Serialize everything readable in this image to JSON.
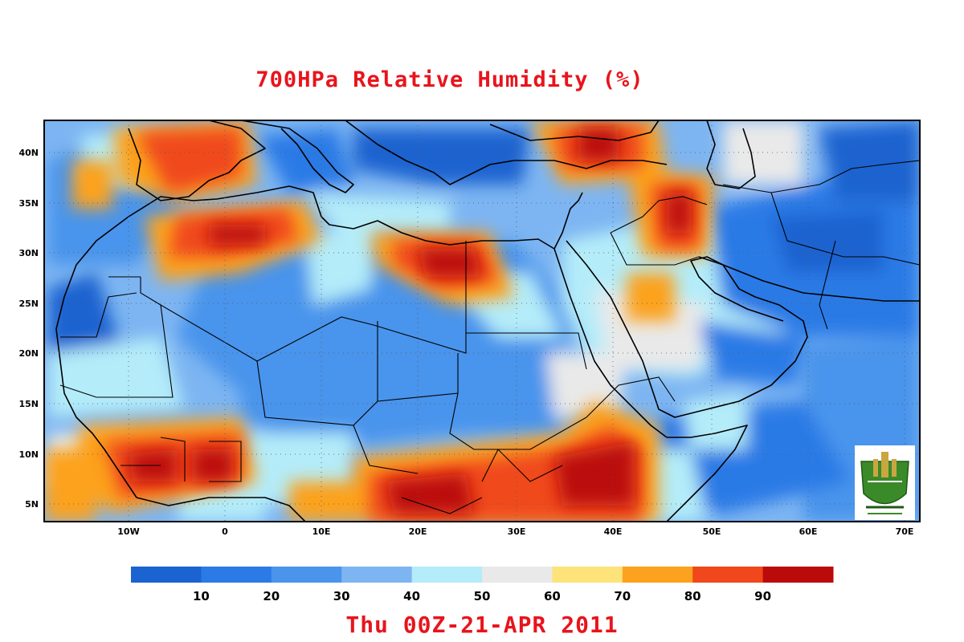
{
  "map": {
    "title": "700HPa Relative Humidity (%)",
    "valid_time": "Thu 00Z-21-APR 2011",
    "field": "relative humidity",
    "level": "700 hPa",
    "lon_range": [
      -18,
      72
    ],
    "lat_range": [
      3,
      43
    ],
    "lon_ticks": [
      "10W",
      "0",
      "10E",
      "20E",
      "30E",
      "40E",
      "50E",
      "60E",
      "70E"
    ],
    "lat_ticks": [
      "40N",
      "35N",
      "30N",
      "25N",
      "20N",
      "15N",
      "10N",
      "5N"
    ],
    "gridlines": "dotted",
    "logo_icon": "university-seal-icon"
  },
  "colorbar": {
    "labels": [
      "10",
      "20",
      "30",
      "40",
      "50",
      "60",
      "70",
      "80",
      "90"
    ],
    "colors": [
      "#1a63d0",
      "#2b7ae6",
      "#4a94ec",
      "#7db5f2",
      "#b4ecf9",
      "#e9e9e9",
      "#fde37a",
      "#fca21e",
      "#f0481a",
      "#bb0a0a"
    ]
  },
  "humidity_regions": [
    {
      "region": "Libya / Egypt coast",
      "level": "high"
    },
    {
      "region": "Morocco / Algeria",
      "level": "high"
    },
    {
      "region": "Turkey / Caucasus",
      "level": "high"
    },
    {
      "region": "Iraq / Zagros",
      "level": "very high"
    },
    {
      "region": "Gulf of Guinea coast",
      "level": "very high"
    },
    {
      "region": "Central Africa / Ethiopia",
      "level": "very high"
    },
    {
      "region": "Sahara",
      "level": "low"
    },
    {
      "region": "Arabian Peninsula",
      "level": "low"
    }
  ]
}
